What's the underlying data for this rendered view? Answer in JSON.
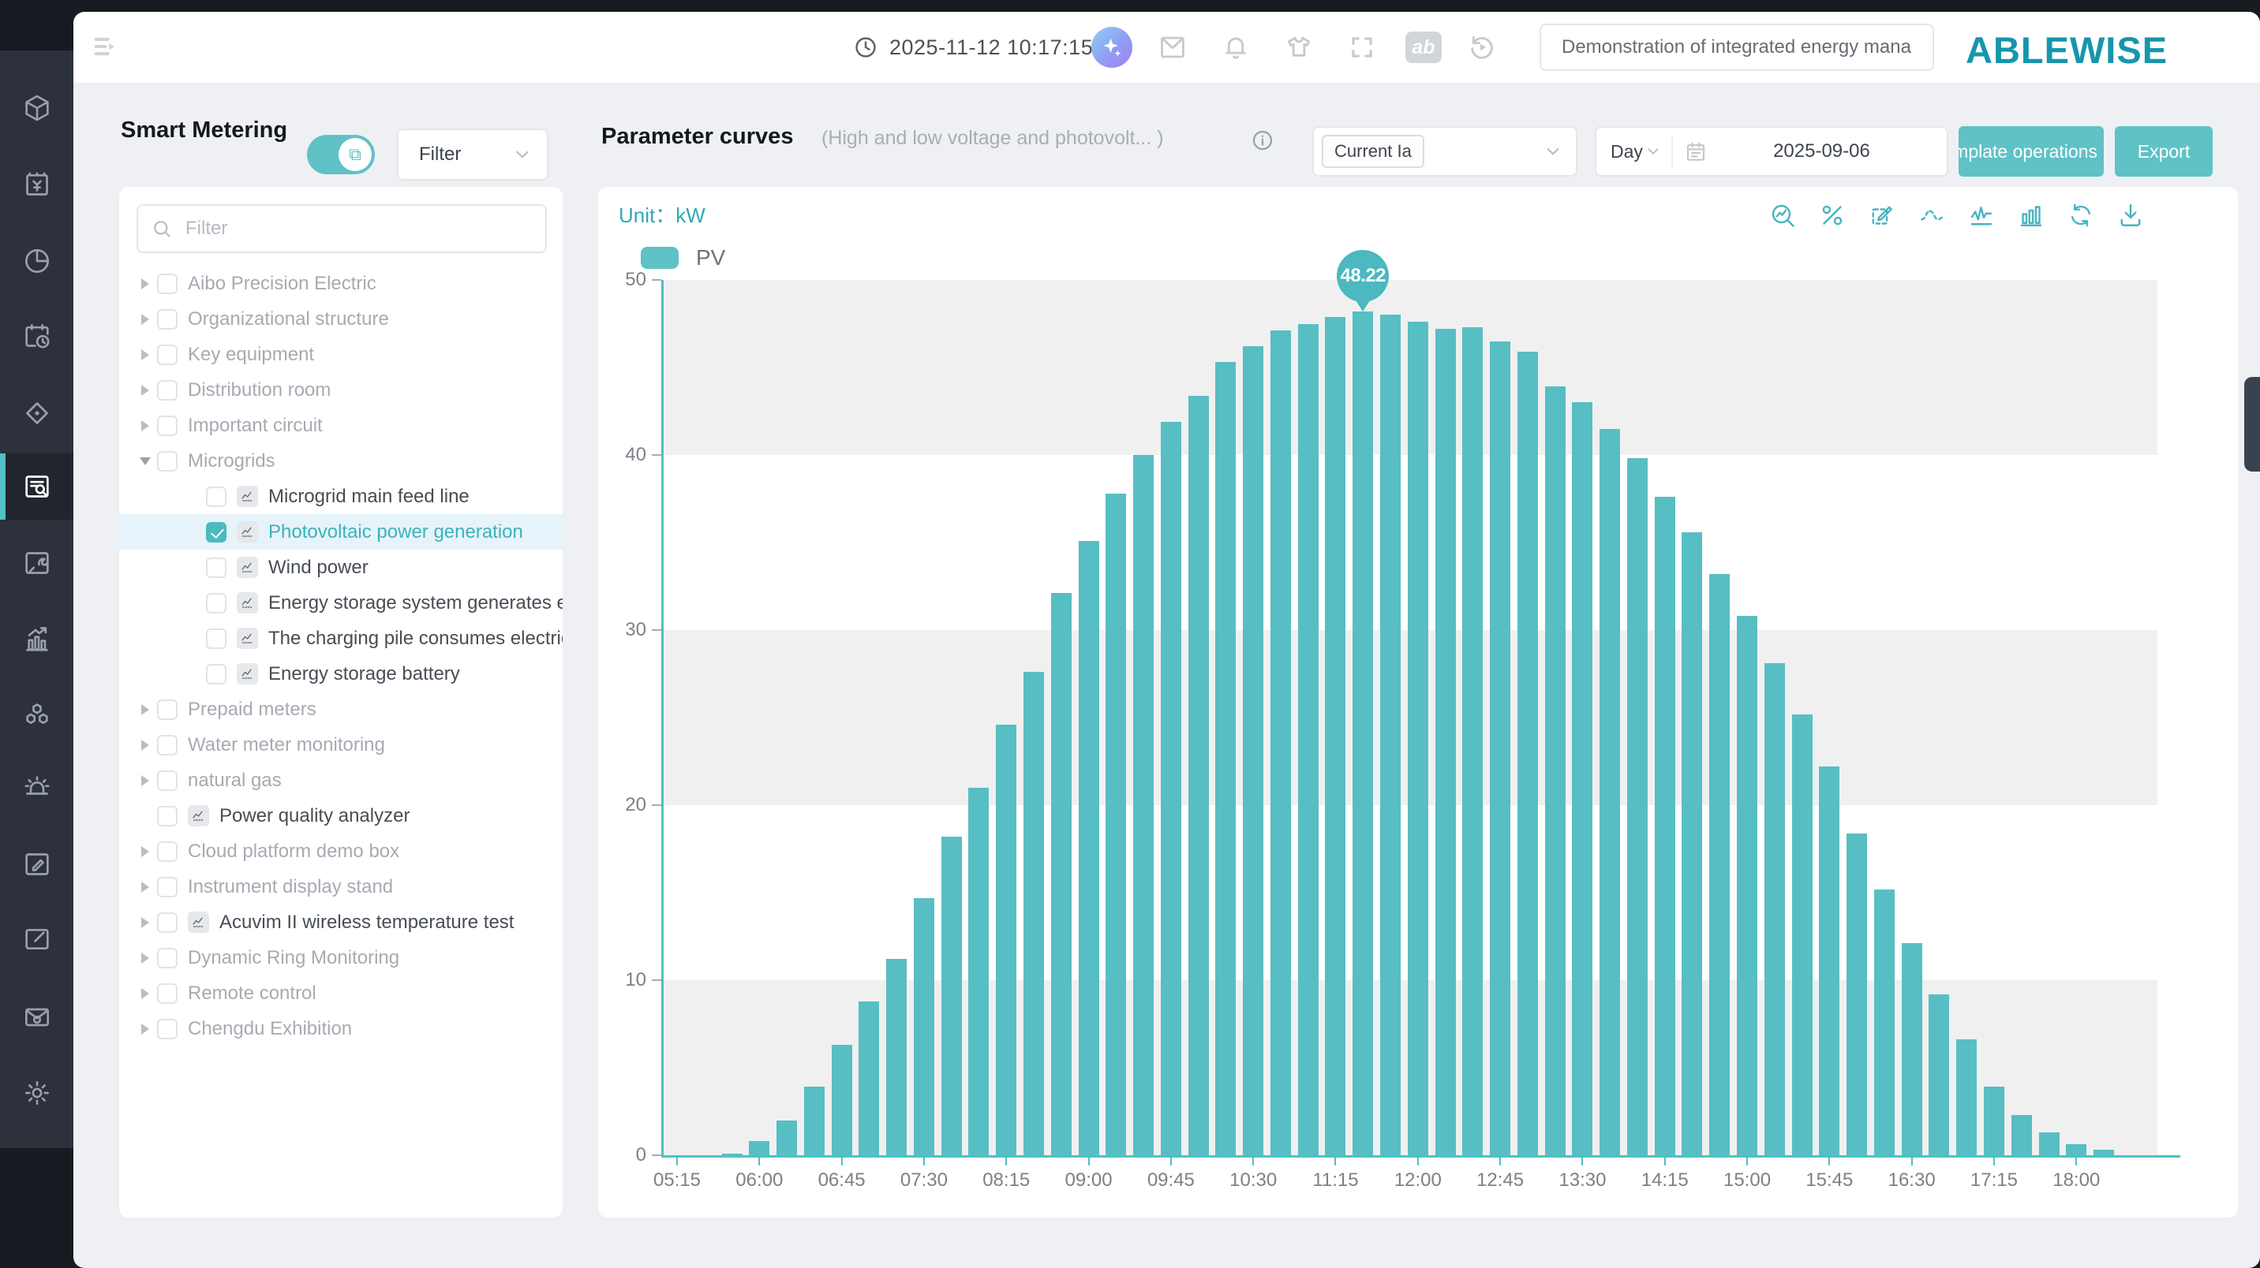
{
  "header": {
    "time": "2025-11-12 10:17:15",
    "search_value": "Demonstration of integrated energy management",
    "logo": "ABLEWISE",
    "record_badge": "ab"
  },
  "rail": {
    "active_index": 5,
    "items": [
      "box-3d-icon",
      "billing-invoice-icon",
      "pie-chart-icon",
      "calendar-clock-icon",
      "scan-target-icon",
      "document-search-icon",
      "image-wrench-icon",
      "trend-chart-icon",
      "hexagon-cluster-icon",
      "alarm-siren-icon",
      "edit-square-icon",
      "compose-square-icon",
      "mail-gear-icon",
      "settings-gear-icon"
    ]
  },
  "sidebar": {
    "title": "Smart Metering",
    "filter_dropdown_label": "Filter",
    "search_placeholder": "Filter",
    "tree": [
      {
        "label": "Aibo Precision Electric",
        "level": 0,
        "caret": "collapsed",
        "muted": true
      },
      {
        "label": "Organizational structure",
        "level": 0,
        "caret": "collapsed",
        "muted": true
      },
      {
        "label": "Key equipment",
        "level": 0,
        "caret": "collapsed",
        "muted": true
      },
      {
        "label": "Distribution room",
        "level": 0,
        "caret": "collapsed",
        "muted": true
      },
      {
        "label": "Important circuit",
        "level": 0,
        "caret": "collapsed",
        "muted": true
      },
      {
        "label": "Microgrids",
        "level": 0,
        "caret": "expanded",
        "muted": true
      },
      {
        "label": "Microgrid main feed line",
        "level": 1,
        "caret": "none",
        "icon": true
      },
      {
        "label": "Photovoltaic power generation",
        "level": 1,
        "caret": "none",
        "icon": true,
        "checked": true,
        "selected": true
      },
      {
        "label": "Wind power",
        "level": 1,
        "caret": "none",
        "icon": true
      },
      {
        "label": "Energy storage system generates elec",
        "level": 1,
        "caret": "none",
        "icon": true
      },
      {
        "label": "The charging pile consumes electricity",
        "level": 1,
        "caret": "none",
        "icon": true
      },
      {
        "label": "Energy storage battery",
        "level": 1,
        "caret": "none",
        "icon": true
      },
      {
        "label": "Prepaid meters",
        "level": 0,
        "caret": "collapsed",
        "muted": true
      },
      {
        "label": "Water meter monitoring",
        "level": 0,
        "caret": "collapsed",
        "muted": true
      },
      {
        "label": "natural gas",
        "level": 0,
        "caret": "collapsed",
        "muted": true
      },
      {
        "label": "Power quality analyzer",
        "level": 0,
        "caret": "none",
        "icon": true
      },
      {
        "label": "Cloud platform demo box",
        "level": 0,
        "caret": "collapsed",
        "muted": true
      },
      {
        "label": "Instrument display stand",
        "level": 0,
        "caret": "collapsed",
        "muted": true
      },
      {
        "label": "Acuvim II wireless temperature test",
        "level": 0,
        "caret": "collapsed",
        "icon": true
      },
      {
        "label": "Dynamic Ring Monitoring",
        "level": 0,
        "caret": "collapsed",
        "muted": true
      },
      {
        "label": "Remote control",
        "level": 0,
        "caret": "collapsed",
        "muted": true
      },
      {
        "label": "Chengdu Exhibition",
        "level": 0,
        "caret": "collapsed",
        "muted": true
      }
    ]
  },
  "chart_header": {
    "title": "Parameter curves",
    "subtitle": "(High and low voltage and photovolt... )",
    "selected_parameter": "Current Ia",
    "period": "Day",
    "date": "2025-09-06",
    "template_button": "Template operations",
    "export_button": "Export"
  },
  "chart": {
    "unit_label": "Unit：kW",
    "legend": "PV",
    "toolbar": [
      "zoom-chart-icon",
      "percent-icon",
      "annotate-icon",
      "smooth-curve-icon",
      "line-chart-icon",
      "bar-chart-icon",
      "refresh-icon",
      "download-icon"
    ],
    "tooltip": {
      "value": "48.22",
      "index": 25
    },
    "accent_color": "#57bec3"
  },
  "chart_data": {
    "type": "bar",
    "title": "Parameter curves (High and low voltage and photovolt... )",
    "ylabel": "kW",
    "ylim": [
      0,
      50
    ],
    "y_ticks": [
      0,
      10,
      20,
      30,
      40,
      50
    ],
    "x_tick_labels": [
      "05:15",
      "06:00",
      "06:45",
      "07:30",
      "08:15",
      "09:00",
      "09:45",
      "10:30",
      "11:15",
      "12:00",
      "12:45",
      "13:30",
      "14:15",
      "15:00",
      "15:45",
      "16:30",
      "17:15",
      "18:00"
    ],
    "x": [
      "05:15",
      "05:30",
      "05:45",
      "06:00",
      "06:15",
      "06:30",
      "06:45",
      "07:00",
      "07:15",
      "07:30",
      "07:45",
      "08:00",
      "08:15",
      "08:30",
      "08:45",
      "09:00",
      "09:15",
      "09:30",
      "09:45",
      "10:00",
      "10:15",
      "10:30",
      "10:45",
      "11:00",
      "11:15",
      "11:30",
      "11:45",
      "12:00",
      "12:15",
      "12:30",
      "12:45",
      "13:00",
      "13:15",
      "13:30",
      "13:45",
      "14:00",
      "14:15",
      "14:30",
      "14:45",
      "15:00",
      "15:15",
      "15:30",
      "15:45",
      "16:00",
      "16:15",
      "16:30",
      "16:45",
      "17:00",
      "17:15",
      "17:30",
      "17:45",
      "18:00",
      "18:15"
    ],
    "series": [
      {
        "name": "PV",
        "values": [
          0,
          0,
          0.1,
          0.8,
          2,
          3.9,
          6.3,
          8.8,
          11.2,
          14.7,
          18.2,
          21,
          24.6,
          27.6,
          32.1,
          35.1,
          37.8,
          40,
          41.9,
          43.4,
          45.3,
          46.2,
          47.1,
          47.5,
          47.9,
          48.22,
          48,
          47.6,
          47.2,
          47.3,
          46.5,
          45.9,
          43.9,
          43,
          41.5,
          39.8,
          37.6,
          35.6,
          33.2,
          30.8,
          28.1,
          25.2,
          22.2,
          18.4,
          15.2,
          12.1,
          9.2,
          6.6,
          3.9,
          2.3,
          1.3,
          0.65,
          0.3
        ]
      }
    ],
    "highlight": {
      "x": "11:30",
      "value": 48.22
    },
    "legend_position": "top-left",
    "grid": "horizontal alternating bands every 10 units",
    "bar_color": "#57bec3"
  }
}
